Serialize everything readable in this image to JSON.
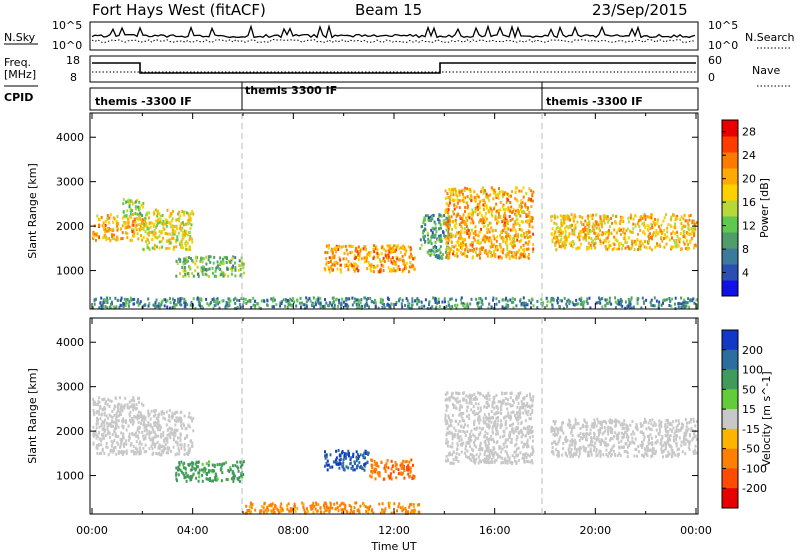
{
  "header": {
    "title": "Fort Hays West (fitACF)",
    "beam": "Beam 15",
    "date": "23/Sep/2015"
  },
  "noise_panel": {
    "left_label": "N.Sky",
    "left_ticks": [
      "10^5",
      "10^0"
    ],
    "right_label": "N.Search",
    "right_ticks": [
      "10^5",
      "10^0"
    ]
  },
  "freq_panel": {
    "left_label_line1": "Freq.",
    "left_label_line2": "[MHz]",
    "left_ticks": [
      "18",
      "8"
    ],
    "right_label": "Nave",
    "right_ticks": [
      "60",
      "0"
    ]
  },
  "cpid_panel": {
    "label": "CPID",
    "segments": [
      {
        "start_hour": 0,
        "text": "themis -3300 IF"
      },
      {
        "start_hour": 6,
        "text": "themis 3300 IF"
      },
      {
        "start_hour": 18,
        "text": "themis -3300 IF"
      }
    ]
  },
  "time_axis": {
    "ticks": [
      "00:00",
      "04:00",
      "08:00",
      "12:00",
      "16:00",
      "20:00",
      "00:00"
    ],
    "label": "Time UT"
  },
  "range_axis": {
    "label": "Slant Range [km]",
    "ticks": [
      "1000",
      "2000",
      "3000",
      "4000"
    ]
  },
  "chart_data": [
    {
      "type": "heatmap",
      "panel": "power",
      "ylabel": "Slant Range [km]",
      "xlabel": "Time UT",
      "xlim_hours": [
        0,
        24
      ],
      "ylim_km": [
        180,
        4500
      ],
      "colorbar_label": "Power [dB]",
      "colorbar_ticks": [
        "4",
        "8",
        "12",
        "16",
        "20",
        "24",
        "28"
      ],
      "colorbar_range": [
        0,
        30
      ],
      "colors": [
        "#1010e8",
        "#2a4fb0",
        "#3c7a9a",
        "#4f9e6a",
        "#60c84c",
        "#b8d838",
        "#ffd000",
        "#ffaa00",
        "#ff7a00",
        "#ff3c00",
        "#e80000"
      ],
      "echo_regions": [
        {
          "t0": 0.0,
          "t1": 2.0,
          "r0": 1700,
          "r1": 2300,
          "value": 20
        },
        {
          "t0": 1.2,
          "t1": 2.0,
          "r0": 2200,
          "r1": 2650,
          "value": 14
        },
        {
          "t0": 2.0,
          "t1": 4.0,
          "r0": 1500,
          "r1": 2400,
          "value": 17
        },
        {
          "t0": 3.3,
          "t1": 6.0,
          "r0": 900,
          "r1": 1350,
          "value": 12
        },
        {
          "t0": 9.2,
          "t1": 12.8,
          "r0": 1000,
          "r1": 1600,
          "value": 21
        },
        {
          "t0": 13.0,
          "t1": 14.2,
          "r0": 1300,
          "r1": 2300,
          "value": 10
        },
        {
          "t0": 14.0,
          "t1": 17.5,
          "r0": 1300,
          "r1": 2900,
          "value": 20
        },
        {
          "t0": 18.2,
          "t1": 24.0,
          "r0": 1500,
          "r1": 2300,
          "value": 19
        },
        {
          "t0": 0.0,
          "t1": 24.0,
          "r0": 180,
          "r1": 420,
          "value": 8
        }
      ],
      "series": [
        {
          "values": []
        }
      ]
    },
    {
      "type": "heatmap",
      "panel": "velocity",
      "ylabel": "Slant Range [km]",
      "xlabel": "Time UT",
      "xlim_hours": [
        0,
        24
      ],
      "ylim_km": [
        180,
        4500
      ],
      "colorbar_label": "Velocity [m s^-1]",
      "colorbar_ticks": [
        "200",
        "100",
        "50",
        "15",
        "-15",
        "-50",
        "-100",
        "-200"
      ],
      "colorbar_range": [
        -250,
        250
      ],
      "colors": [
        "#1238c8",
        "#2c6ea0",
        "#3f9a5c",
        "#62cc3a",
        "#c8c8c8",
        "#ffb400",
        "#ff8000",
        "#ff4c00",
        "#e60000"
      ],
      "echo_regions": [
        {
          "t0": 0.0,
          "t1": 2.0,
          "r0": 1500,
          "r1": 2800,
          "value": 0
        },
        {
          "t0": 2.0,
          "t1": 4.0,
          "r0": 1500,
          "r1": 2500,
          "value": 0
        },
        {
          "t0": 3.3,
          "t1": 6.0,
          "r0": 900,
          "r1": 1350,
          "value": 40
        },
        {
          "t0": 9.2,
          "t1": 11.0,
          "r0": 1150,
          "r1": 1600,
          "value": 150
        },
        {
          "t0": 11.0,
          "t1": 12.8,
          "r0": 950,
          "r1": 1400,
          "value": -70
        },
        {
          "t0": 14.0,
          "t1": 17.5,
          "r0": 1300,
          "r1": 2900,
          "value": 0
        },
        {
          "t0": 18.2,
          "t1": 24.0,
          "r0": 1450,
          "r1": 2300,
          "value": 0
        },
        {
          "t0": 6.0,
          "t1": 13.0,
          "r0": 180,
          "r1": 420,
          "value": -40
        }
      ],
      "series": [
        {
          "values": []
        }
      ]
    }
  ]
}
